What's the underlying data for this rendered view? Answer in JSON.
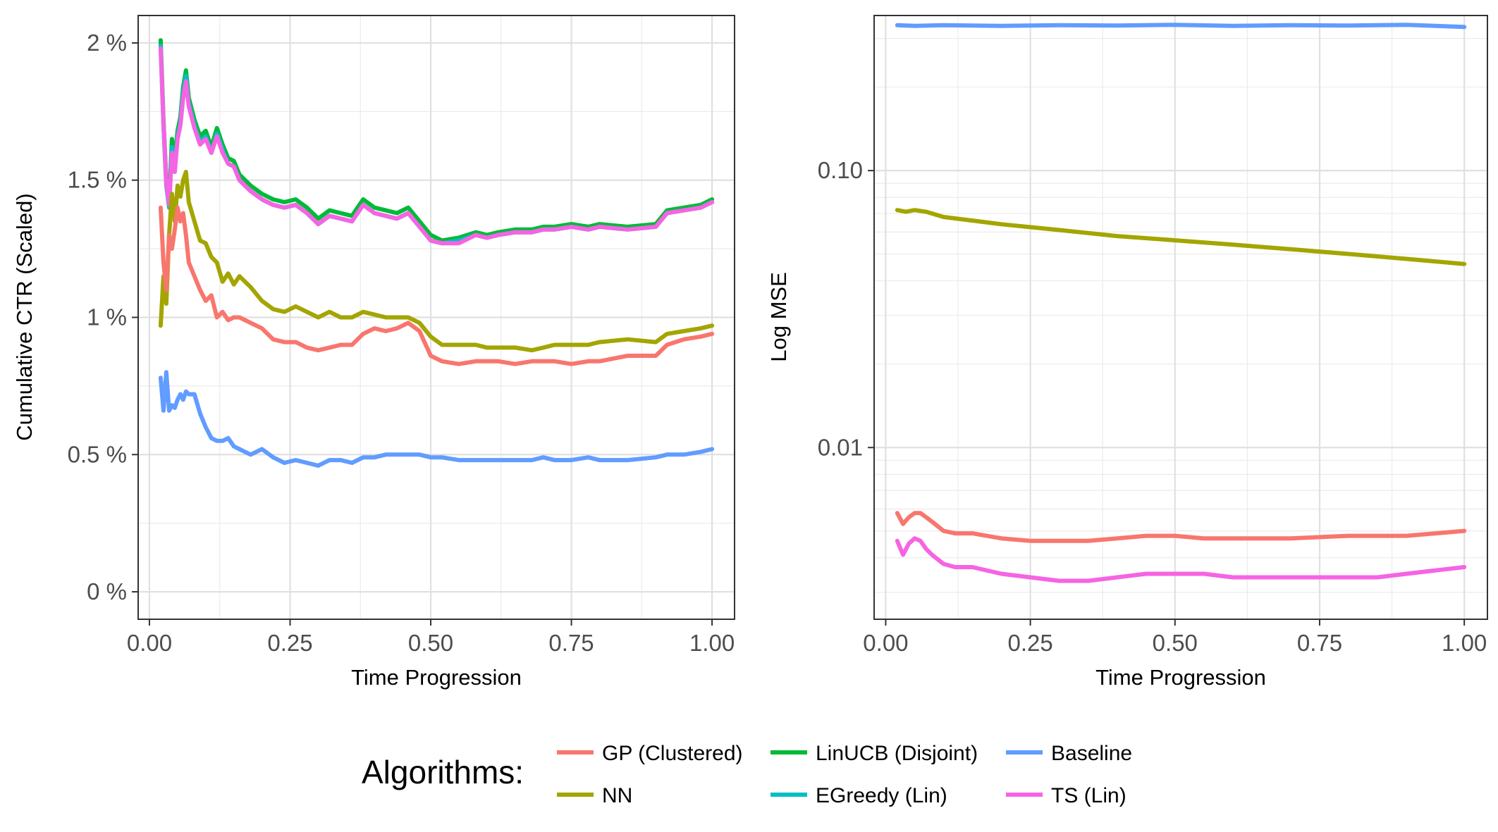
{
  "chart_data": [
    {
      "type": "line",
      "xlabel": "Time Progression",
      "ylabel": "Cumulative CTR (Scaled)",
      "xlim": [
        -0.02,
        1.04
      ],
      "ylim": [
        -0.1,
        2.1
      ],
      "x_ticks": [
        0,
        0.25,
        0.5,
        0.75,
        1.0
      ],
      "x_tick_labels": [
        "0.00",
        "0.25",
        "0.50",
        "0.75",
        "1.00"
      ],
      "y_ticks": [
        0,
        0.5,
        1,
        1.5,
        2
      ],
      "y_tick_labels": [
        "0 %",
        "0.5 %",
        "1 %",
        "1.5 %",
        "2 %"
      ],
      "grid": true,
      "series": [
        {
          "name": "LinUCB (Disjoint)",
          "color": "#00BA38",
          "x": [
            0.02,
            0.025,
            0.03,
            0.035,
            0.04,
            0.045,
            0.05,
            0.055,
            0.06,
            0.065,
            0.07,
            0.08,
            0.09,
            0.1,
            0.11,
            0.12,
            0.13,
            0.14,
            0.15,
            0.16,
            0.18,
            0.2,
            0.22,
            0.24,
            0.26,
            0.28,
            0.3,
            0.32,
            0.34,
            0.36,
            0.38,
            0.4,
            0.42,
            0.44,
            0.46,
            0.48,
            0.5,
            0.52,
            0.55,
            0.58,
            0.6,
            0.62,
            0.65,
            0.68,
            0.7,
            0.72,
            0.75,
            0.78,
            0.8,
            0.85,
            0.9,
            0.92,
            0.95,
            0.98,
            1.0
          ],
          "values": [
            2.01,
            1.72,
            1.5,
            1.42,
            1.65,
            1.58,
            1.68,
            1.73,
            1.84,
            1.9,
            1.8,
            1.72,
            1.66,
            1.68,
            1.62,
            1.69,
            1.63,
            1.58,
            1.57,
            1.52,
            1.48,
            1.45,
            1.43,
            1.42,
            1.43,
            1.4,
            1.36,
            1.39,
            1.38,
            1.37,
            1.43,
            1.4,
            1.39,
            1.38,
            1.4,
            1.35,
            1.3,
            1.28,
            1.29,
            1.31,
            1.3,
            1.31,
            1.32,
            1.32,
            1.33,
            1.33,
            1.34,
            1.33,
            1.34,
            1.33,
            1.34,
            1.39,
            1.4,
            1.41,
            1.43
          ]
        },
        {
          "name": "EGreedy (Lin)",
          "color": "#00BFC4",
          "x": [
            0.02,
            0.025,
            0.03,
            0.035,
            0.04,
            0.045,
            0.05,
            0.055,
            0.06,
            0.065,
            0.07,
            0.08,
            0.09,
            0.1,
            0.11,
            0.12,
            0.13,
            0.14,
            0.15,
            0.16,
            0.18,
            0.2,
            0.22,
            0.24,
            0.26,
            0.28,
            0.3,
            0.32,
            0.34,
            0.36,
            0.38,
            0.4,
            0.42,
            0.44,
            0.46,
            0.48,
            0.5,
            0.52,
            0.55,
            0.58,
            0.6,
            0.62,
            0.65,
            0.68,
            0.7,
            0.72,
            0.75,
            0.78,
            0.8,
            0.85,
            0.9,
            0.92,
            0.95,
            0.98,
            1.0
          ],
          "values": [
            1.99,
            1.7,
            1.48,
            1.4,
            1.62,
            1.55,
            1.66,
            1.71,
            1.82,
            1.88,
            1.78,
            1.7,
            1.64,
            1.66,
            1.6,
            1.67,
            1.61,
            1.56,
            1.55,
            1.5,
            1.46,
            1.43,
            1.41,
            1.4,
            1.41,
            1.38,
            1.34,
            1.37,
            1.36,
            1.35,
            1.41,
            1.38,
            1.37,
            1.36,
            1.38,
            1.33,
            1.28,
            1.27,
            1.28,
            1.3,
            1.29,
            1.3,
            1.31,
            1.31,
            1.32,
            1.32,
            1.33,
            1.32,
            1.33,
            1.32,
            1.33,
            1.38,
            1.39,
            1.4,
            1.42
          ]
        },
        {
          "name": "TS (Lin)",
          "color": "#F564E3",
          "x": [
            0.02,
            0.025,
            0.03,
            0.035,
            0.04,
            0.045,
            0.05,
            0.055,
            0.06,
            0.065,
            0.07,
            0.08,
            0.09,
            0.1,
            0.11,
            0.12,
            0.13,
            0.14,
            0.15,
            0.16,
            0.18,
            0.2,
            0.22,
            0.24,
            0.26,
            0.28,
            0.3,
            0.32,
            0.34,
            0.36,
            0.38,
            0.4,
            0.42,
            0.44,
            0.46,
            0.48,
            0.5,
            0.52,
            0.55,
            0.58,
            0.6,
            0.62,
            0.65,
            0.68,
            0.7,
            0.72,
            0.75,
            0.78,
            0.8,
            0.85,
            0.9,
            0.92,
            0.95,
            0.98,
            1.0
          ],
          "values": [
            1.98,
            1.71,
            1.49,
            1.41,
            1.6,
            1.53,
            1.65,
            1.7,
            1.8,
            1.86,
            1.77,
            1.69,
            1.63,
            1.65,
            1.6,
            1.66,
            1.6,
            1.56,
            1.55,
            1.5,
            1.46,
            1.43,
            1.41,
            1.4,
            1.41,
            1.38,
            1.34,
            1.37,
            1.36,
            1.35,
            1.41,
            1.38,
            1.37,
            1.36,
            1.38,
            1.33,
            1.28,
            1.27,
            1.27,
            1.3,
            1.29,
            1.3,
            1.31,
            1.31,
            1.32,
            1.32,
            1.33,
            1.32,
            1.33,
            1.32,
            1.33,
            1.38,
            1.39,
            1.4,
            1.42
          ]
        },
        {
          "name": "NN",
          "color": "#A3A500",
          "x": [
            0.02,
            0.025,
            0.03,
            0.035,
            0.04,
            0.045,
            0.05,
            0.055,
            0.06,
            0.065,
            0.07,
            0.08,
            0.09,
            0.1,
            0.11,
            0.12,
            0.13,
            0.14,
            0.15,
            0.16,
            0.18,
            0.2,
            0.22,
            0.24,
            0.26,
            0.28,
            0.3,
            0.32,
            0.34,
            0.36,
            0.38,
            0.4,
            0.42,
            0.44,
            0.46,
            0.48,
            0.5,
            0.52,
            0.55,
            0.58,
            0.6,
            0.62,
            0.65,
            0.68,
            0.7,
            0.72,
            0.75,
            0.78,
            0.8,
            0.85,
            0.9,
            0.92,
            0.95,
            0.98,
            1.0
          ],
          "values": [
            0.97,
            1.15,
            1.05,
            1.3,
            1.45,
            1.35,
            1.48,
            1.44,
            1.5,
            1.53,
            1.42,
            1.35,
            1.28,
            1.27,
            1.22,
            1.2,
            1.13,
            1.16,
            1.12,
            1.15,
            1.11,
            1.06,
            1.03,
            1.02,
            1.04,
            1.02,
            1.0,
            1.02,
            1.0,
            1.0,
            1.02,
            1.01,
            1.0,
            1.0,
            1.0,
            0.98,
            0.93,
            0.9,
            0.9,
            0.9,
            0.89,
            0.89,
            0.89,
            0.88,
            0.89,
            0.9,
            0.9,
            0.9,
            0.91,
            0.92,
            0.91,
            0.94,
            0.95,
            0.96,
            0.97
          ]
        },
        {
          "name": "GP (Clustered)",
          "color": "#F8766D",
          "x": [
            0.02,
            0.025,
            0.03,
            0.035,
            0.04,
            0.045,
            0.05,
            0.055,
            0.06,
            0.065,
            0.07,
            0.08,
            0.09,
            0.1,
            0.11,
            0.12,
            0.13,
            0.14,
            0.15,
            0.16,
            0.18,
            0.2,
            0.22,
            0.24,
            0.26,
            0.28,
            0.3,
            0.32,
            0.34,
            0.36,
            0.38,
            0.4,
            0.42,
            0.44,
            0.46,
            0.48,
            0.5,
            0.52,
            0.55,
            0.58,
            0.6,
            0.62,
            0.65,
            0.68,
            0.7,
            0.72,
            0.75,
            0.78,
            0.8,
            0.85,
            0.9,
            0.92,
            0.95,
            0.98,
            1.0
          ],
          "values": [
            1.4,
            1.2,
            1.1,
            1.3,
            1.25,
            1.32,
            1.4,
            1.35,
            1.38,
            1.3,
            1.2,
            1.15,
            1.1,
            1.06,
            1.08,
            1.0,
            1.02,
            0.99,
            1.0,
            1.0,
            0.98,
            0.96,
            0.92,
            0.91,
            0.91,
            0.89,
            0.88,
            0.89,
            0.9,
            0.9,
            0.94,
            0.96,
            0.95,
            0.96,
            0.98,
            0.95,
            0.86,
            0.84,
            0.83,
            0.84,
            0.84,
            0.84,
            0.83,
            0.84,
            0.84,
            0.84,
            0.83,
            0.84,
            0.84,
            0.86,
            0.86,
            0.9,
            0.92,
            0.93,
            0.94
          ]
        },
        {
          "name": "Baseline",
          "color": "#619CFF",
          "x": [
            0.02,
            0.025,
            0.03,
            0.035,
            0.04,
            0.045,
            0.05,
            0.055,
            0.06,
            0.065,
            0.07,
            0.08,
            0.09,
            0.1,
            0.11,
            0.12,
            0.13,
            0.14,
            0.15,
            0.16,
            0.18,
            0.2,
            0.22,
            0.24,
            0.26,
            0.28,
            0.3,
            0.32,
            0.34,
            0.36,
            0.38,
            0.4,
            0.42,
            0.44,
            0.46,
            0.48,
            0.5,
            0.52,
            0.55,
            0.58,
            0.6,
            0.62,
            0.65,
            0.68,
            0.7,
            0.72,
            0.75,
            0.78,
            0.8,
            0.85,
            0.9,
            0.92,
            0.95,
            0.98,
            1.0
          ],
          "values": [
            0.78,
            0.66,
            0.8,
            0.66,
            0.68,
            0.67,
            0.7,
            0.72,
            0.7,
            0.73,
            0.72,
            0.72,
            0.65,
            0.6,
            0.56,
            0.55,
            0.55,
            0.56,
            0.53,
            0.52,
            0.5,
            0.52,
            0.49,
            0.47,
            0.48,
            0.47,
            0.46,
            0.48,
            0.48,
            0.47,
            0.49,
            0.49,
            0.5,
            0.5,
            0.5,
            0.5,
            0.49,
            0.49,
            0.48,
            0.48,
            0.48,
            0.48,
            0.48,
            0.48,
            0.49,
            0.48,
            0.48,
            0.49,
            0.48,
            0.48,
            0.49,
            0.5,
            0.5,
            0.51,
            0.52
          ]
        }
      ]
    },
    {
      "type": "line",
      "xlabel": "Time Progression",
      "ylabel": "Log MSE",
      "y_scale": "log",
      "xlim": [
        -0.02,
        1.04
      ],
      "ylim_log10": [
        -2.62,
        -0.44
      ],
      "x_ticks": [
        0,
        0.25,
        0.5,
        0.75,
        1.0
      ],
      "x_tick_labels": [
        "0.00",
        "0.25",
        "0.50",
        "0.75",
        "1.00"
      ],
      "y_ticks": [
        0.01,
        0.1
      ],
      "y_tick_labels": [
        "0.01",
        "0.10"
      ],
      "grid": true,
      "series": [
        {
          "name": "Baseline",
          "color": "#619CFF",
          "x": [
            0.02,
            0.05,
            0.1,
            0.2,
            0.3,
            0.4,
            0.5,
            0.6,
            0.7,
            0.8,
            0.9,
            0.95,
            1.0
          ],
          "values": [
            0.335,
            0.333,
            0.335,
            0.333,
            0.335,
            0.334,
            0.336,
            0.333,
            0.335,
            0.334,
            0.336,
            0.333,
            0.33
          ]
        },
        {
          "name": "NN",
          "color": "#A3A500",
          "x": [
            0.02,
            0.035,
            0.05,
            0.07,
            0.1,
            0.15,
            0.2,
            0.3,
            0.4,
            0.5,
            0.6,
            0.7,
            0.8,
            0.9,
            1.0
          ],
          "values": [
            0.072,
            0.071,
            0.072,
            0.071,
            0.068,
            0.066,
            0.064,
            0.061,
            0.058,
            0.056,
            0.054,
            0.052,
            0.05,
            0.048,
            0.046
          ]
        },
        {
          "name": "GP (Clustered)",
          "color": "#F8766D",
          "x": [
            0.02,
            0.03,
            0.04,
            0.05,
            0.06,
            0.07,
            0.08,
            0.1,
            0.12,
            0.15,
            0.2,
            0.25,
            0.3,
            0.35,
            0.4,
            0.45,
            0.5,
            0.55,
            0.6,
            0.7,
            0.8,
            0.9,
            0.95,
            1.0
          ],
          "values": [
            0.0058,
            0.0053,
            0.0056,
            0.0058,
            0.0058,
            0.0056,
            0.0054,
            0.005,
            0.0049,
            0.0049,
            0.0047,
            0.0046,
            0.0046,
            0.0046,
            0.0047,
            0.0048,
            0.0048,
            0.0047,
            0.0047,
            0.0047,
            0.0048,
            0.0048,
            0.0049,
            0.005
          ]
        },
        {
          "name": "TS (Lin)",
          "color": "#F564E3",
          "x": [
            0.02,
            0.03,
            0.04,
            0.05,
            0.06,
            0.07,
            0.08,
            0.1,
            0.12,
            0.15,
            0.2,
            0.25,
            0.3,
            0.35,
            0.4,
            0.45,
            0.5,
            0.55,
            0.6,
            0.7,
            0.8,
            0.85,
            0.9,
            0.95,
            1.0
          ],
          "values": [
            0.0046,
            0.0041,
            0.0045,
            0.0047,
            0.0046,
            0.0043,
            0.0041,
            0.0038,
            0.0037,
            0.0037,
            0.0035,
            0.0034,
            0.0033,
            0.0033,
            0.0034,
            0.0035,
            0.0035,
            0.0035,
            0.0034,
            0.0034,
            0.0034,
            0.0034,
            0.0035,
            0.0036,
            0.0037
          ]
        }
      ]
    }
  ],
  "legend": {
    "title": "Algorithms:",
    "placement": "bottom",
    "items": [
      {
        "label": "GP (Clustered)",
        "color": "#F8766D"
      },
      {
        "label": "LinUCB (Disjoint)",
        "color": "#00BA38"
      },
      {
        "label": "Baseline",
        "color": "#619CFF"
      },
      {
        "label": "NN",
        "color": "#A3A500"
      },
      {
        "label": "EGreedy (Lin)",
        "color": "#00BFC4"
      },
      {
        "label": "TS (Lin)",
        "color": "#F564E3"
      }
    ]
  }
}
